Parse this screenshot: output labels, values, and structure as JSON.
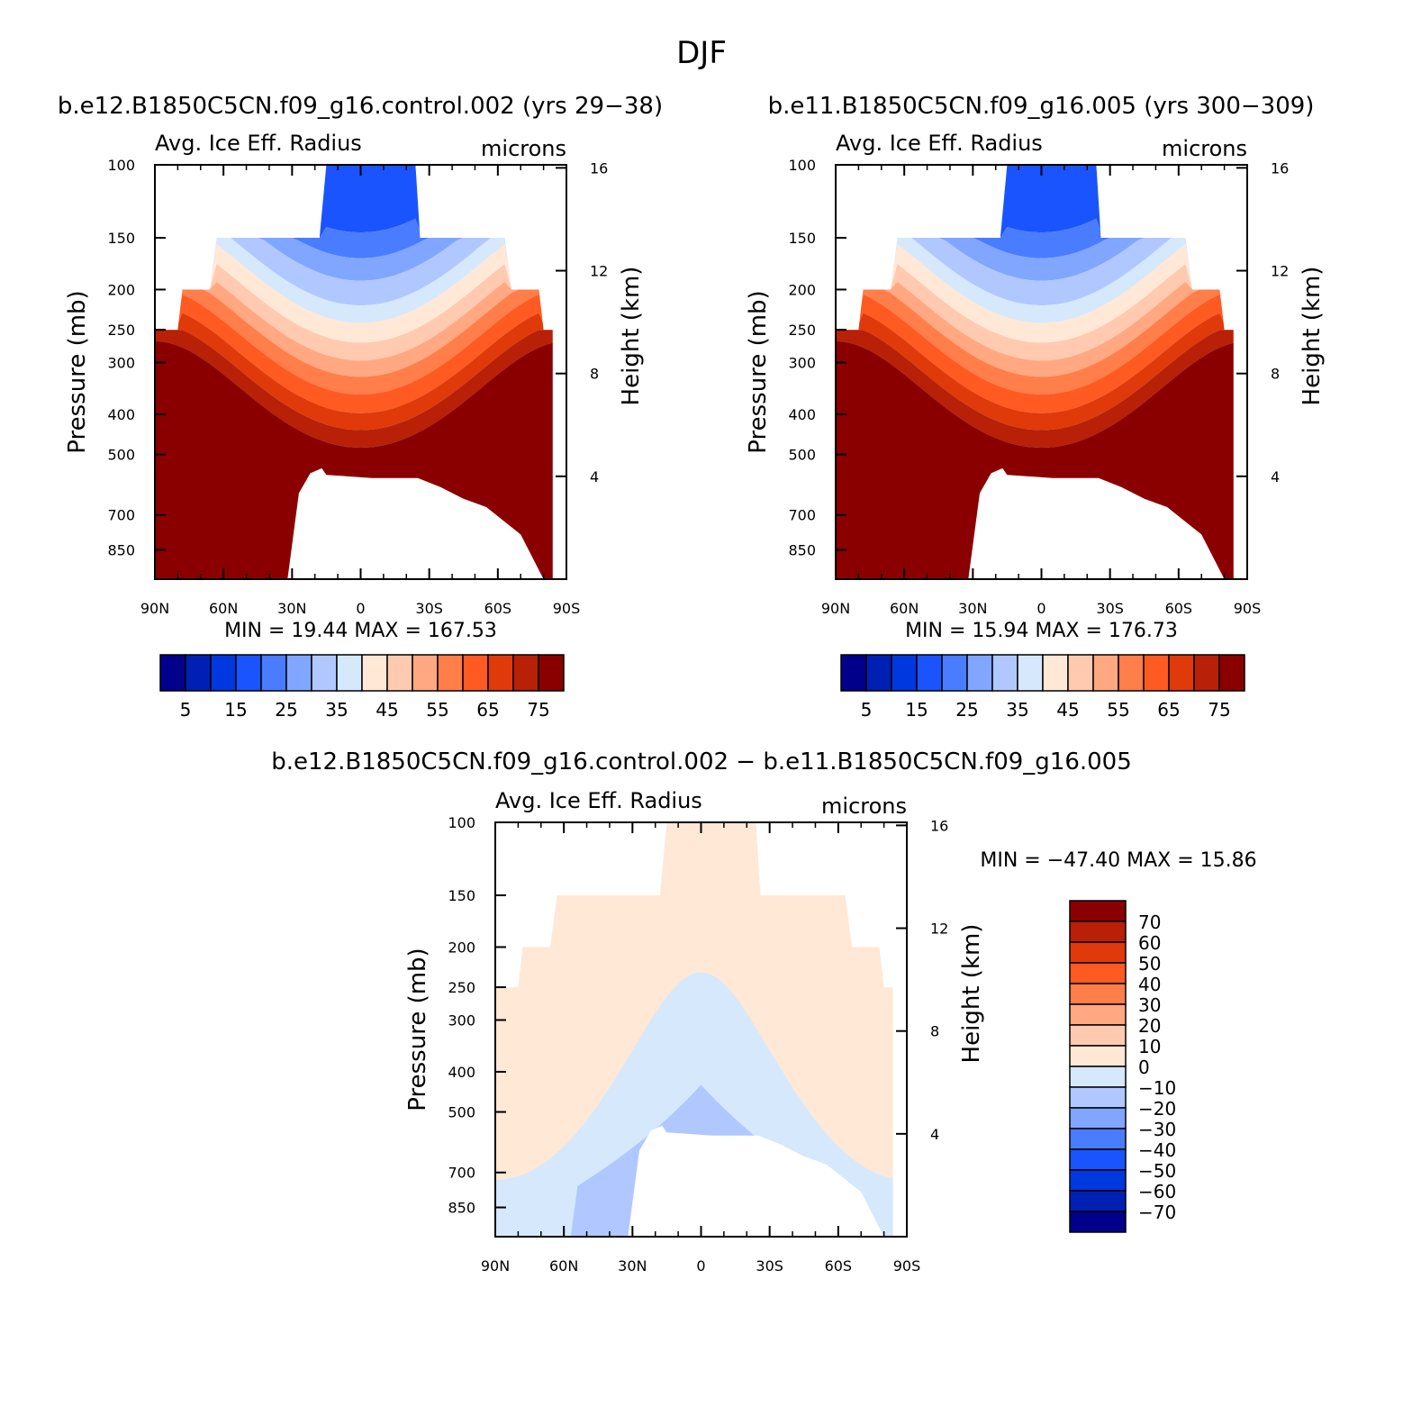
{
  "figure": {
    "season": "DJF"
  },
  "panels": [
    {
      "id": "case1",
      "title": "b.e12.B1850C5CN.f09_g16.control.002 (yrs 29−38)",
      "left_string": "Avg. Ice Eff. Radius",
      "right_string": "microns",
      "stats": {
        "min": "19.44",
        "max": "167.53",
        "text": "MIN =   19.44   MAX =  167.53"
      }
    },
    {
      "id": "case2",
      "title": "b.e11.B1850C5CN.f09_g16.005 (yrs 300−309)",
      "left_string": "Avg. Ice Eff. Radius",
      "right_string": "microns",
      "stats": {
        "min": "15.94",
        "max": "176.73",
        "text": "MIN =   15.94   MAX =  176.73"
      }
    },
    {
      "id": "diff",
      "title": "b.e12.B1850C5CN.f09_g16.control.002 − b.e11.B1850C5CN.f09_g16.005",
      "left_string": "Avg. Ice Eff. Radius",
      "right_string": "microns",
      "stats": {
        "min": "−47.40",
        "max": "15.86",
        "text": "MIN = −47.40   MAX =   15.86"
      }
    }
  ],
  "chart_data": [
    {
      "type": "heatmap",
      "title": "b.e12.B1850C5CN.f09_g16.control.002 (yrs 29−38)",
      "subtitle": "Avg. Ice Eff. Radius",
      "units": "microns",
      "xlabel": "",
      "ylabel": "Pressure (mb)",
      "y2label": "Height (km)",
      "x_ticks": [
        "90N",
        "60N",
        "30N",
        "0",
        "30S",
        "60S",
        "90S"
      ],
      "x_range": [
        90,
        -90
      ],
      "y_ticks": [
        100,
        150,
        200,
        250,
        300,
        400,
        500,
        700,
        850
      ],
      "y_range": [
        100,
        1000
      ],
      "y_scale": "log",
      "y2_ticks": [
        16,
        12,
        8,
        4
      ],
      "colorbar": {
        "orientation": "horizontal",
        "levels": [
          5,
          10,
          15,
          20,
          25,
          30,
          35,
          40,
          45,
          50,
          55,
          60,
          65,
          70,
          75
        ],
        "labels": [
          "5",
          "15",
          "25",
          "35",
          "45",
          "55",
          "65",
          "75"
        ]
      },
      "min": 19.44,
      "max": 167.53
    },
    {
      "type": "heatmap",
      "title": "b.e11.B1850C5CN.f09_g16.005 (yrs 300−309)",
      "subtitle": "Avg. Ice Eff. Radius",
      "units": "microns",
      "xlabel": "",
      "ylabel": "Pressure (mb)",
      "y2label": "Height (km)",
      "x_ticks": [
        "90N",
        "60N",
        "30N",
        "0",
        "30S",
        "60S",
        "90S"
      ],
      "x_range": [
        90,
        -90
      ],
      "y_ticks": [
        100,
        150,
        200,
        250,
        300,
        400,
        500,
        700,
        850
      ],
      "y_range": [
        100,
        1000
      ],
      "y_scale": "log",
      "y2_ticks": [
        16,
        12,
        8,
        4
      ],
      "colorbar": {
        "orientation": "horizontal",
        "levels": [
          5,
          10,
          15,
          20,
          25,
          30,
          35,
          40,
          45,
          50,
          55,
          60,
          65,
          70,
          75
        ],
        "labels": [
          "5",
          "15",
          "25",
          "35",
          "45",
          "55",
          "65",
          "75"
        ]
      },
      "min": 15.94,
      "max": 176.73
    },
    {
      "type": "heatmap",
      "title": "b.e12.B1850C5CN.f09_g16.control.002 − b.e11.B1850C5CN.f09_g16.005",
      "subtitle": "Avg. Ice Eff. Radius",
      "units": "microns",
      "xlabel": "",
      "ylabel": "Pressure (mb)",
      "y2label": "Height (km)",
      "x_ticks": [
        "90N",
        "60N",
        "30N",
        "0",
        "30S",
        "60S",
        "90S"
      ],
      "x_range": [
        90,
        -90
      ],
      "y_ticks": [
        100,
        150,
        200,
        250,
        300,
        400,
        500,
        700,
        850
      ],
      "y_range": [
        100,
        1000
      ],
      "y_scale": "log",
      "y2_ticks": [
        16,
        12,
        8,
        4
      ],
      "colorbar": {
        "orientation": "vertical",
        "levels": [
          70,
          60,
          50,
          40,
          30,
          20,
          10,
          0,
          -10,
          -20,
          -30,
          -40,
          -50,
          -60,
          -70
        ],
        "labels": [
          "70",
          "60",
          "50",
          "40",
          "30",
          "20",
          "10",
          "0",
          "−10",
          "−20",
          "−30",
          "−40",
          "−50",
          "−60",
          "−70"
        ]
      },
      "min": -47.4,
      "max": 15.86
    }
  ],
  "colors": {
    "scale16": [
      "#00008a",
      "#0020b4",
      "#0038e0",
      "#1a54ff",
      "#4a7cff",
      "#80a6ff",
      "#b0c8ff",
      "#d6e8fc",
      "#ffe8d6",
      "#ffcab0",
      "#ffa882",
      "#ff7e4a",
      "#ff5a22",
      "#e03a0a",
      "#b82008",
      "#8a0000"
    ],
    "plot_white": "#ffffff"
  }
}
